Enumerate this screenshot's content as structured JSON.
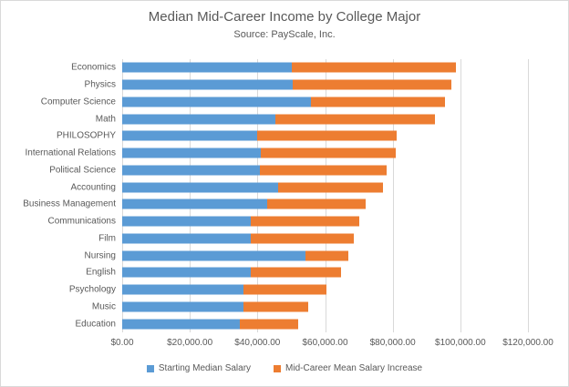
{
  "chart": {
    "title": "Median Mid-Career Income by College Major",
    "subtitle": "Source: PayScale, Inc."
  },
  "chart_data": {
    "type": "bar",
    "orientation": "horizontal",
    "stacked": true,
    "title": "Median Mid-Career Income by College Major",
    "subtitle": "Source: PayScale, Inc.",
    "xlabel": "",
    "ylabel": "",
    "categories": [
      "Economics",
      "Physics",
      "Computer Science",
      "Math",
      "PHILOSOPHY",
      "International Relations",
      "Political Science",
      "Accounting",
      "Business Management",
      "Communications",
      "Film",
      "Nursing",
      "English",
      "Psychology",
      "Music",
      "Education"
    ],
    "series": [
      {
        "name": "Starting Median Salary",
        "color": "#5b9bd5",
        "values": [
          50100,
          50300,
          55900,
          45400,
          39900,
          40900,
          40800,
          46000,
          43000,
          38100,
          37900,
          54200,
          38000,
          35900,
          35900,
          34900
        ]
      },
      {
        "name": "Mid-Career Mean Salary Increase",
        "color": "#ed7d31",
        "values": [
          48500,
          47000,
          39600,
          47000,
          41300,
          40000,
          37400,
          31100,
          29100,
          31900,
          30600,
          12800,
          26700,
          24500,
          19100,
          17100
        ]
      }
    ],
    "xlim": [
      0,
      120000
    ],
    "x_tick_interval": 20000,
    "x_tick_labels": [
      "$0.00",
      "$20,000.00",
      "$40,000.00",
      "$60,000.00",
      "$80,000.00",
      "$100,000.00",
      "$120,000.00"
    ],
    "grid": "vertical",
    "gridline_color": "#d9d9d9",
    "text_color": "#595959",
    "legend_position": "bottom"
  }
}
